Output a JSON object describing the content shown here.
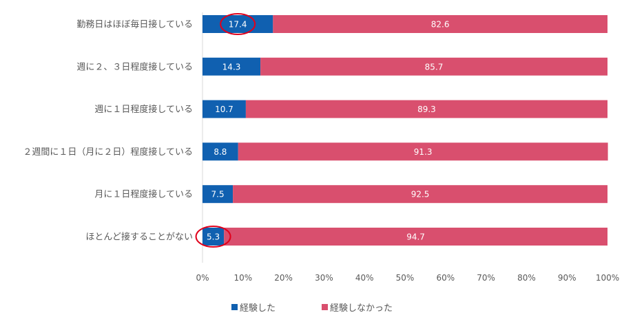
{
  "chart_data": {
    "type": "bar",
    "orientation": "horizontal-stacked",
    "categories": [
      "勤務日はほぼ毎日接している",
      "週に２、３日程度接している",
      "週に１日程度接している",
      "２週間に１日（月に２日）程度接している",
      "月に１日程度接している",
      "ほとんど接することがない"
    ],
    "series": [
      {
        "name": "経験した",
        "color": "#1060b0",
        "values": [
          17.4,
          14.3,
          10.7,
          8.8,
          7.5,
          5.3
        ]
      },
      {
        "name": "経験しなかった",
        "color": "#d94f6e",
        "values": [
          82.6,
          85.7,
          89.3,
          91.3,
          92.5,
          94.7
        ]
      }
    ],
    "xlim": [
      0,
      100
    ],
    "xticks": [
      "0%",
      "10%",
      "20%",
      "30%",
      "40%",
      "50%",
      "60%",
      "70%",
      "80%",
      "90%",
      "100%"
    ],
    "highlighted": [
      "17.4",
      "5.3"
    ],
    "highlight_color": "#e0001b",
    "legend_position": "bottom",
    "grid": false
  }
}
